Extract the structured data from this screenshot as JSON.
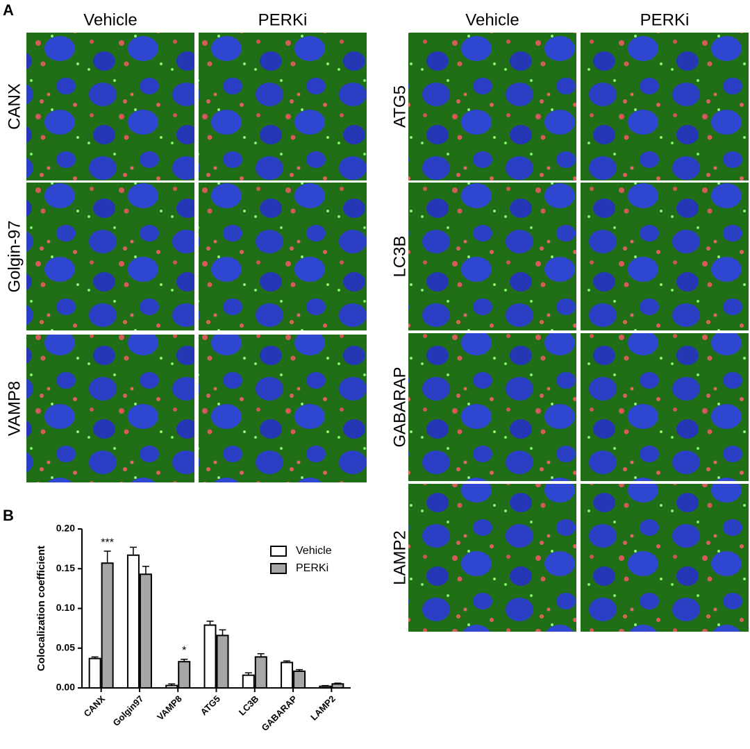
{
  "panel_a": {
    "label": "A",
    "left": {
      "columns": [
        "Vehicle",
        "PERKi"
      ],
      "rows": [
        "CANX",
        "Golgin-97",
        "VAMP8"
      ]
    },
    "right": {
      "columns": [
        "Vehicle",
        "PERKi"
      ],
      "rows": [
        "ATG5",
        "LC3B",
        "GABARAP",
        "LAMP2"
      ]
    }
  },
  "chart_data": {
    "type": "bar",
    "panel_label": "B",
    "y_label": "Colocalization coefficient",
    "categories": [
      "CANX",
      "Golgin97",
      "VAMP8",
      "ATG5",
      "LC3B",
      "GABARAP",
      "LAMP2"
    ],
    "series": [
      {
        "name": "Vehicle",
        "color": "#ffffff",
        "values": [
          0.037,
          0.167,
          0.003,
          0.079,
          0.016,
          0.032,
          0.002
        ],
        "errors": [
          0.002,
          0.01,
          0.002,
          0.005,
          0.003,
          0.002,
          0.001
        ]
      },
      {
        "name": "PERKi",
        "color": "#a6a6a6",
        "values": [
          0.157,
          0.143,
          0.033,
          0.066,
          0.039,
          0.021,
          0.005
        ],
        "errors": [
          0.015,
          0.01,
          0.003,
          0.007,
          0.004,
          0.002,
          0.001
        ],
        "significance": [
          "***",
          null,
          "*",
          null,
          null,
          null,
          null
        ]
      }
    ],
    "ylim": [
      0,
      0.2
    ],
    "yticks": [
      {
        "value": 0,
        "label": "0.00"
      },
      {
        "value": 0.05,
        "label": "0.05"
      },
      {
        "value": 0.1,
        "label": "0.10"
      },
      {
        "value": 0.15,
        "label": "0.15"
      },
      {
        "value": 0.2,
        "label": "0.20"
      }
    ],
    "legend": "upper right"
  }
}
